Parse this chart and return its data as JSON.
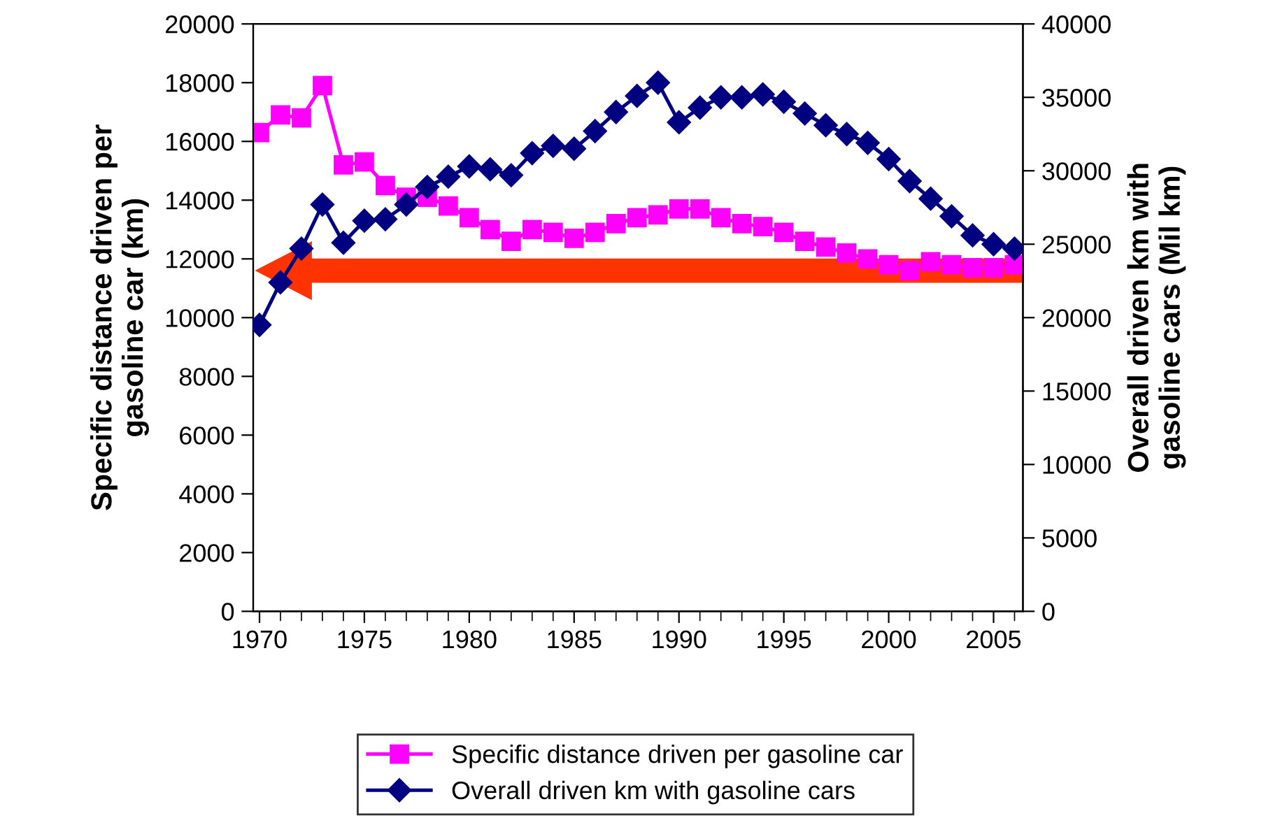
{
  "chart_data": {
    "type": "line",
    "xlabel": null,
    "ylabel": "Specific distance driven per\ngasoline car (km)",
    "y2label": "Overall driven km with\ngasoline cars (Mil km)",
    "x": [
      1970,
      1971,
      1972,
      1973,
      1974,
      1975,
      1976,
      1977,
      1978,
      1979,
      1980,
      1981,
      1982,
      1983,
      1984,
      1985,
      1986,
      1987,
      1988,
      1989,
      1990,
      1991,
      1992,
      1993,
      1994,
      1995,
      1996,
      1997,
      1998,
      1999,
      2000,
      2001,
      2002,
      2003,
      2004,
      2005,
      2006
    ],
    "series": [
      {
        "name": "Specific distance driven per gasoline car",
        "color": "#ff00ff",
        "marker": "square",
        "values": [
          16300,
          16900,
          16800,
          17900,
          15200,
          15300,
          14500,
          14100,
          14100,
          13800,
          13400,
          13000,
          12600,
          13000,
          12900,
          12700,
          12900,
          13200,
          13400,
          13500,
          13700,
          13700,
          13400,
          13200,
          13100,
          12900,
          12600,
          12400,
          12200,
          12000,
          11800,
          11600,
          11900,
          11800,
          11700,
          11700,
          11800
        ]
      },
      {
        "name": "Overall driven km with gasoline cars",
        "color": "#000080",
        "marker": "diamond",
        "axis": "y2",
        "values": [
          19500,
          22400,
          24700,
          27700,
          25100,
          26600,
          26700,
          27700,
          28900,
          29600,
          30300,
          30100,
          29700,
          31200,
          31700,
          31500,
          32700,
          34000,
          35100,
          36000,
          33300,
          34300,
          35000,
          35000,
          35200,
          34700,
          33900,
          33100,
          32500,
          31900,
          30800,
          29300,
          28100,
          26900,
          25600,
          25000,
          24700
        ]
      }
    ],
    "xlim": [
      1969.7,
      2006.4
    ],
    "xticks": [
      1970,
      1975,
      1980,
      1985,
      1990,
      1995,
      2000,
      2005
    ],
    "ylim": [
      0,
      20000
    ],
    "yticks": [
      0,
      2000,
      4000,
      6000,
      8000,
      10000,
      12000,
      14000,
      16000,
      18000,
      20000
    ],
    "y2lim": [
      0,
      40000
    ],
    "y2ticks": [
      0,
      5000,
      10000,
      15000,
      20000,
      25000,
      30000,
      35000,
      40000
    ],
    "grid": false,
    "legend": "bottom",
    "line_style": "solid"
  }
}
